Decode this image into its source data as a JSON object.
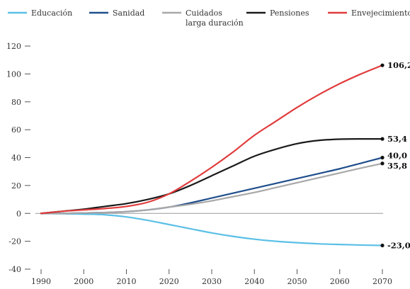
{
  "chart_data": {
    "type": "line",
    "x": [
      1990,
      1995,
      2000,
      2005,
      2010,
      2015,
      2020,
      2025,
      2030,
      2035,
      2040,
      2045,
      2050,
      2055,
      2060,
      2065,
      2070
    ],
    "x_ticks": [
      1990,
      2000,
      2010,
      2020,
      2030,
      2040,
      2050,
      2060,
      2070
    ],
    "y_ticks": [
      120,
      100,
      80,
      60,
      40,
      20,
      0,
      -20,
      -40
    ],
    "y_tick_labels": [
      "120",
      "100",
      "80",
      "60",
      "40",
      "20",
      "0",
      "-20",
      "-40"
    ],
    "xlim": [
      1990,
      2070
    ],
    "ylim": [
      -40,
      120
    ],
    "legend_position": "top",
    "series": [
      {
        "name": "Educación",
        "color": "#5bc0e6",
        "values": [
          0,
          -0.2,
          -0.5,
          -1.0,
          -2.5,
          -5.0,
          -8.0,
          -11.0,
          -14.0,
          -16.5,
          -18.5,
          -20.0,
          -21.0,
          -21.8,
          -22.3,
          -22.7,
          -23.0
        ],
        "end_label": "-23,0"
      },
      {
        "name": "Sanidad",
        "color": "#1f4e8c",
        "values": [
          0,
          0,
          0.3,
          0.6,
          1.2,
          2.5,
          4.5,
          7.5,
          11.0,
          14.5,
          18.0,
          21.5,
          25.0,
          28.5,
          32.0,
          36.0,
          40.0
        ],
        "end_label": "40,0"
      },
      {
        "name": "Cuidados larga duración",
        "legend_lines": [
          "Cuidados",
          "larga duración"
        ],
        "color": "#a8a8a8",
        "values": [
          0,
          0,
          0.3,
          0.6,
          1.2,
          2.5,
          4.5,
          6.5,
          9.0,
          12.0,
          15.0,
          18.5,
          22.0,
          25.5,
          29.0,
          32.5,
          35.8
        ],
        "end_label": "35,8"
      },
      {
        "name": "Pensiones",
        "color": "#1a1a1a",
        "values": [
          0,
          1.5,
          3.0,
          5.0,
          7.0,
          10.0,
          14.0,
          20.0,
          27.0,
          34.0,
          41.0,
          46.0,
          50.0,
          52.3,
          53.2,
          53.4,
          53.4
        ],
        "end_label": "53,4"
      },
      {
        "name": "Envejecimiento",
        "color": "#e03c3c",
        "values": [
          0,
          1.5,
          2.5,
          3.5,
          5.0,
          8.0,
          14.0,
          23.0,
          33.0,
          44.0,
          56.0,
          66.0,
          76.0,
          85.0,
          93.0,
          100.0,
          106.2
        ],
        "end_label": "106,2"
      }
    ]
  }
}
